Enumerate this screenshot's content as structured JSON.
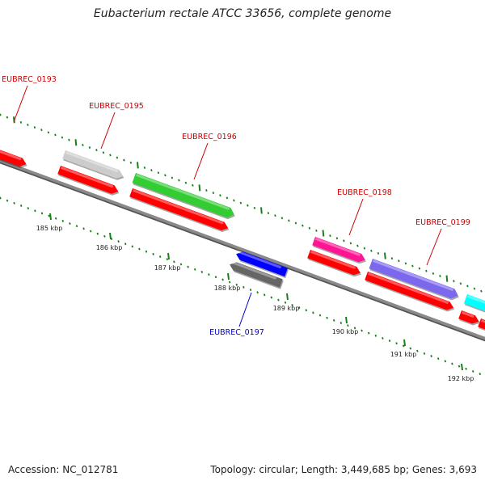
{
  "title": "Eubacterium rectale ATCC 33656, complete genome",
  "footer": {
    "accession": "Accession: NC_012781",
    "summary": "Topology: circular; Length: 3,449,685 bp; Genes: 3,693"
  },
  "colors": {
    "backbone": "#8a8a8a",
    "tick": "#1a7f1a",
    "label_red": "#cc0000",
    "label_blue": "#0000cc"
  },
  "scale_ticks": [
    "185 kbp",
    "186 kbp",
    "187 kbp",
    "188 kbp",
    "189 kbp",
    "190 kbp",
    "191 kbp",
    "192 kbp"
  ],
  "genes": [
    {
      "id": "EUBREC_0193",
      "color": "#ff0000",
      "strand": "+",
      "track": "forward",
      "labeled": true
    },
    {
      "id": "EUBREC_0195",
      "color": "#cccccc",
      "strand": "+",
      "track": "forward",
      "labeled": true
    },
    {
      "id": "EUBREC_0196",
      "color": "#33cc33",
      "strand": "+",
      "track": "forward",
      "labeled": true
    },
    {
      "id": "EUBREC_0197",
      "color": "#0000ff",
      "strand": "-",
      "track": "reverse",
      "labeled": true
    },
    {
      "id": "EUBREC_0198",
      "color": "#ff1493",
      "strand": "+",
      "track": "forward",
      "labeled": true
    },
    {
      "id": "EUBREC_0199",
      "color": "#7b68ee",
      "strand": "+",
      "track": "forward",
      "labeled": true
    },
    {
      "id": "",
      "color": "#00ffff",
      "strand": "+",
      "track": "forward",
      "labeled": false
    }
  ],
  "cds_blocks": [
    {
      "color": "#ff0000",
      "strand": "+"
    },
    {
      "color": "#ff0000",
      "strand": "+"
    },
    {
      "color": "#ff0000",
      "strand": "+"
    },
    {
      "color": "#ff0000",
      "strand": "+"
    },
    {
      "color": "#ff0000",
      "strand": "+"
    },
    {
      "color": "#ff0000",
      "strand": "+"
    },
    {
      "color": "#666666",
      "strand": "-"
    }
  ]
}
